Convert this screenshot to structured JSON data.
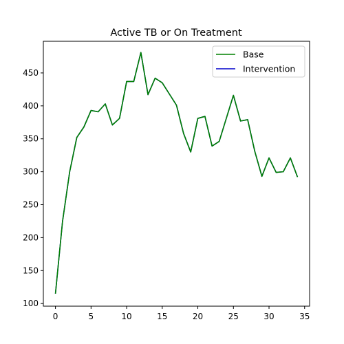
{
  "chart_data": {
    "type": "line",
    "title": "Active TB or On Treatment",
    "xlabel": "",
    "ylabel": "",
    "xlim": [
      -1.7,
      35.7
    ],
    "ylim": [
      96,
      498
    ],
    "xticks": [
      0,
      5,
      10,
      15,
      20,
      25,
      30,
      35
    ],
    "yticks": [
      100,
      150,
      200,
      250,
      300,
      350,
      400,
      450
    ],
    "x": [
      0,
      1,
      2,
      3,
      4,
      5,
      6,
      7,
      8,
      9,
      10,
      11,
      12,
      13,
      14,
      15,
      16,
      17,
      18,
      19,
      20,
      21,
      22,
      23,
      24,
      25,
      26,
      27,
      28,
      29,
      30,
      31,
      32,
      33,
      34
    ],
    "series": [
      {
        "name": "Base",
        "color": "#008000",
        "values": [
          115,
          225,
          300,
          352,
          368,
          393,
          391,
          403,
          371,
          381,
          437,
          437,
          481,
          417,
          442,
          435,
          418,
          401,
          358,
          330,
          381,
          384,
          339,
          346,
          381,
          416,
          377,
          379,
          331,
          293,
          321,
          299,
          300,
          321,
          292
        ]
      },
      {
        "name": "Intervention",
        "color": "#0000cc",
        "values": [
          115,
          225,
          300,
          352,
          368,
          393,
          391,
          403,
          371,
          381,
          437,
          437,
          481,
          417,
          442,
          435,
          418,
          401,
          358,
          330,
          381,
          384,
          339,
          346,
          381,
          416,
          377,
          379,
          331,
          293,
          321,
          299,
          300,
          321,
          292
        ]
      }
    ],
    "legend": {
      "position": "top-right"
    },
    "grid": false
  }
}
